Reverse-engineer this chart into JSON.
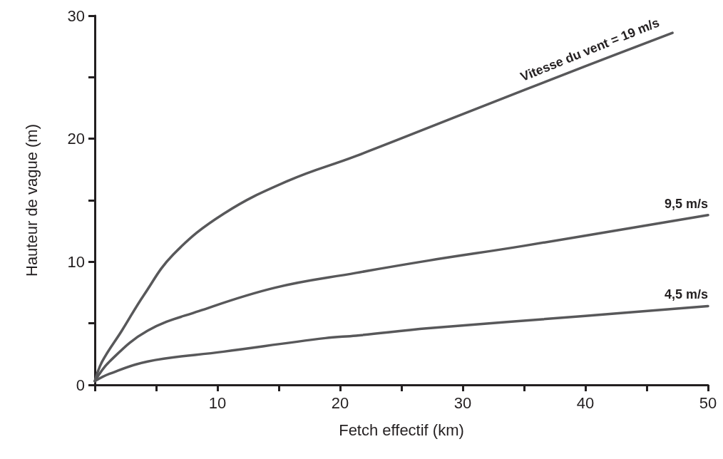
{
  "chart_data": {
    "type": "line",
    "xlabel": "Fetch effectif (km)",
    "ylabel": "Hauteur de vague (m)",
    "xlim": [
      0,
      50
    ],
    "ylim": [
      0,
      30
    ],
    "xticks": [
      {
        "value": 0,
        "label": null
      },
      {
        "value": 5,
        "label": null
      },
      10,
      {
        "value": 15,
        "label": null
      },
      20,
      {
        "value": 25,
        "label": null
      },
      30,
      {
        "value": 35,
        "label": null
      },
      40,
      {
        "value": 45,
        "label": null
      },
      50
    ],
    "yticks": [
      0,
      {
        "value": 5,
        "label": null
      },
      10,
      {
        "value": 15,
        "label": null
      },
      20,
      {
        "value": 25,
        "label": null
      },
      30
    ],
    "grid": false,
    "legend": false,
    "marker": "none",
    "line_style": "solid",
    "series": [
      {
        "name": "Vitesse du vent = 19 m/s",
        "color": "#58585a",
        "x": [
          0,
          0.6,
          2.2,
          4,
          6.4,
          10.5,
          15.8,
          21.3,
          30,
          40,
          47.1
        ],
        "values": [
          0.3,
          1.9,
          4.4,
          7.3,
          10.6,
          13.9,
          16.6,
          18.6,
          22.0,
          25.9,
          28.6
        ]
      },
      {
        "name": "9,5 m/s",
        "color": "#58585a",
        "x": [
          0,
          1.2,
          4.3,
          8.5,
          14.7,
          21.3,
          27.2,
          35,
          50
        ],
        "values": [
          0.3,
          1.9,
          4.4,
          6.0,
          7.9,
          9.1,
          10.1,
          11.3,
          13.8
        ]
      },
      {
        "name": "4,5 m/s",
        "color": "#58585a",
        "x": [
          0,
          1.2,
          4.3,
          10.5,
          18.8,
          21.3,
          27.2,
          40,
          50
        ],
        "values": [
          0.3,
          0.9,
          1.9,
          2.7,
          3.8,
          4.0,
          4.6,
          5.6,
          6.4
        ]
      }
    ]
  }
}
